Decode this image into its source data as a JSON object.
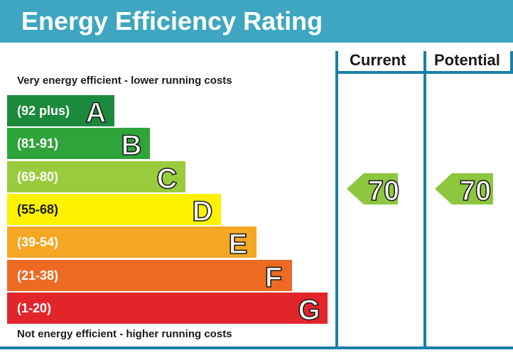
{
  "title": "Energy Efficiency Rating",
  "columns": {
    "current": "Current",
    "potential": "Potential"
  },
  "captions": {
    "top": "Very energy efficient - lower running costs",
    "bottom": "Not energy efficient - higher running costs"
  },
  "bands": [
    {
      "range": "(92 plus)",
      "letter": "A",
      "color": "#1b8a3c"
    },
    {
      "range": "(81-91)",
      "letter": "B",
      "color": "#2ea43a"
    },
    {
      "range": "(69-80)",
      "letter": "C",
      "color": "#9acb3c"
    },
    {
      "range": "(55-68)",
      "letter": "D",
      "color": "#fff200"
    },
    {
      "range": "(39-54)",
      "letter": "E",
      "color": "#f5a623"
    },
    {
      "range": "(21-38)",
      "letter": "F",
      "color": "#ee6a22"
    },
    {
      "range": "(1-20)",
      "letter": "G",
      "color": "#e2252a"
    }
  ],
  "ratings": {
    "current": {
      "value": "70",
      "band": "C",
      "color": "#8dc63f"
    },
    "potential": {
      "value": "70",
      "band": "C",
      "color": "#8dc63f"
    }
  },
  "frame_color": "#1b7fa6",
  "header_color": "#3ea6c0"
}
